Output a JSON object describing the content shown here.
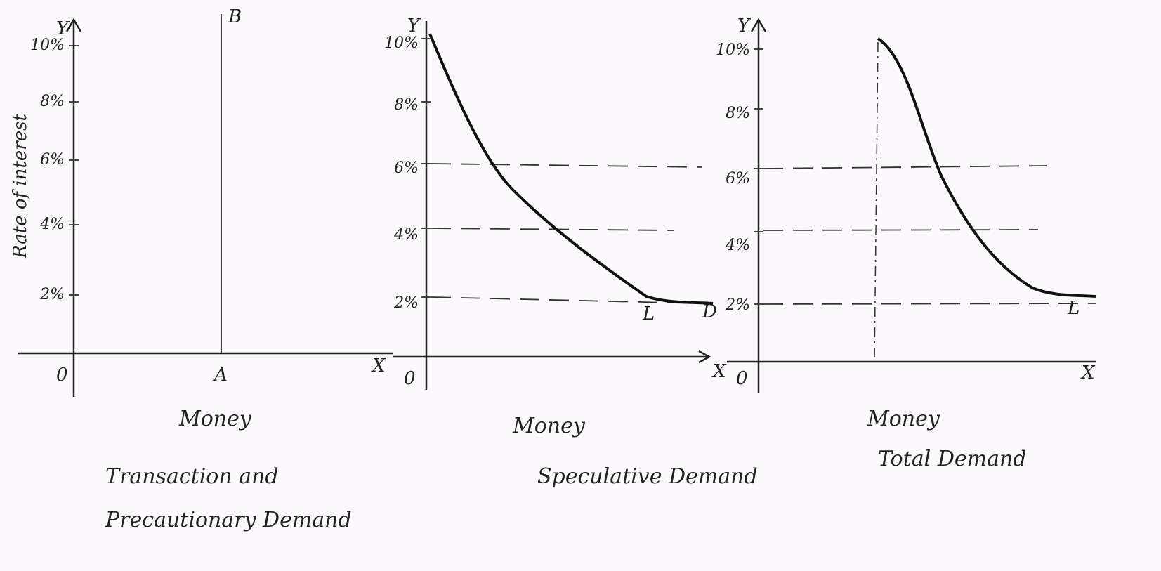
{
  "y_axis_title": "Rate of interest",
  "panels": [
    {
      "y_symbol": "Y",
      "x_symbol": "X",
      "origin": "0",
      "ticks": [
        "10%",
        "8%",
        "6%",
        "4%",
        "2%"
      ],
      "points": [
        "A",
        "B"
      ],
      "caption": [
        "Money",
        "Transaction and",
        "Precautionary Demand"
      ]
    },
    {
      "y_symbol": "Y",
      "x_symbol": "X",
      "origin": "0",
      "ticks": [
        "10%",
        "8%",
        "6%",
        "4%",
        "2%"
      ],
      "points": [
        "L",
        "D"
      ],
      "caption": [
        "Money",
        "Speculative Demand"
      ]
    },
    {
      "y_symbol": "Y",
      "x_symbol": "X",
      "origin": "0",
      "ticks": [
        "10%",
        "8%",
        "6%",
        "4%",
        "2%"
      ],
      "points": [
        "L"
      ],
      "caption": [
        "Money",
        "Total Demand"
      ]
    }
  ]
}
